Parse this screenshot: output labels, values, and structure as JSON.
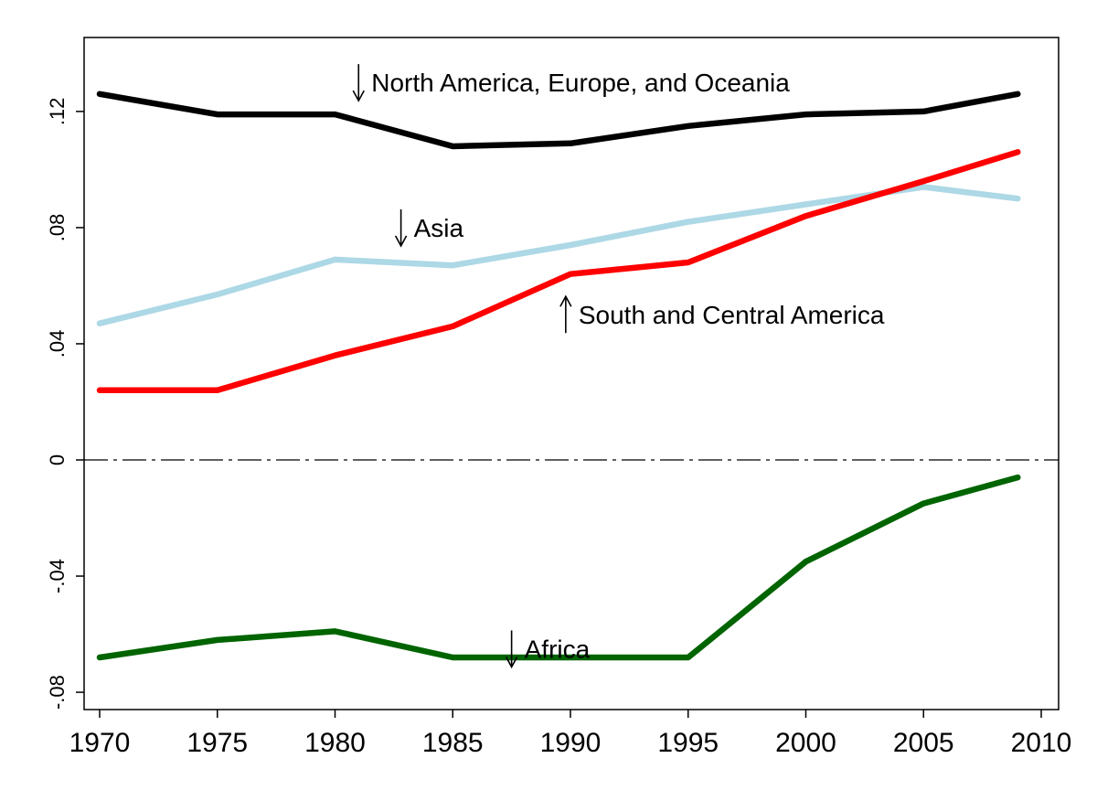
{
  "chart_data": {
    "type": "line",
    "title": "",
    "xlabel": "",
    "ylabel": "",
    "x": [
      1970,
      1975,
      1980,
      1985,
      1990,
      1995,
      2000,
      2005,
      2009
    ],
    "xlim": [
      1970,
      2010
    ],
    "ylim": [
      -0.08,
      0.14
    ],
    "x_ticks": [
      1970,
      1975,
      1980,
      1985,
      1990,
      1995,
      2000,
      2005,
      2010
    ],
    "x_tick_labels": [
      "1970",
      "1975",
      "1980",
      "1985",
      "1990",
      "1995",
      "2000",
      "2005",
      "2010"
    ],
    "y_ticks": [
      -0.08,
      -0.04,
      0,
      0.04,
      0.08,
      0.12
    ],
    "y_tick_labels": [
      "-.08",
      "-.04",
      "0",
      ".04",
      ".08",
      ".12"
    ],
    "grid": false,
    "legend": "none",
    "zero_line": {
      "y": 0,
      "style": "dash-dot",
      "color": "#000000"
    },
    "series": [
      {
        "name": "North America, Europe, and Oceania",
        "color": "#000000",
        "values": [
          0.126,
          0.119,
          0.119,
          0.108,
          0.109,
          0.115,
          0.119,
          0.12,
          0.126
        ]
      },
      {
        "name": "Asia",
        "color": "#add8e6",
        "values": [
          0.047,
          0.057,
          0.069,
          0.067,
          0.074,
          0.082,
          0.088,
          0.094,
          0.09
        ]
      },
      {
        "name": "South and Central America",
        "color": "#ff0000",
        "values": [
          0.024,
          0.024,
          0.036,
          0.046,
          0.064,
          0.068,
          0.084,
          0.096,
          0.106
        ]
      },
      {
        "name": "Africa",
        "color": "#006400",
        "values": [
          -0.068,
          -0.062,
          -0.059,
          -0.068,
          -0.068,
          -0.068,
          -0.035,
          -0.015,
          -0.006
        ]
      }
    ],
    "annotations": [
      {
        "text": "North America, Europe, and Oceania",
        "arrow": "down",
        "x": 1981,
        "y": 0.13
      },
      {
        "text": "Asia",
        "arrow": "down",
        "x": 1982.8,
        "y": 0.08
      },
      {
        "text": "South and Central America",
        "arrow": "up",
        "x": 1989.8,
        "y": 0.05
      },
      {
        "text": "Africa",
        "arrow": "down",
        "x": 1987.5,
        "y": -0.065
      }
    ]
  }
}
